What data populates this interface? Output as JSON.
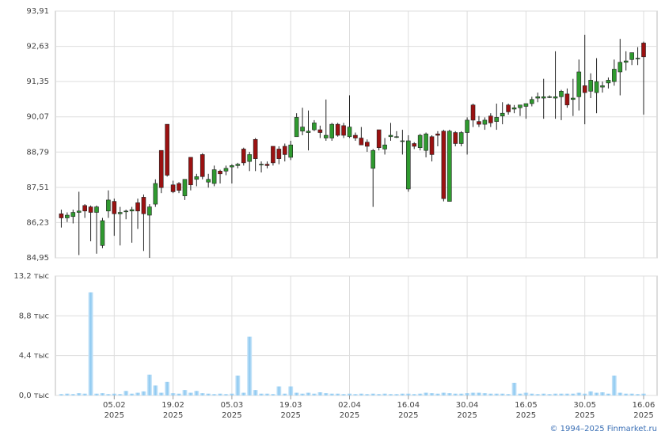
{
  "chart_data": [
    {
      "type": "candlestick",
      "candles": [
        [
          86.55,
          86.7,
          86.05,
          86.4
        ],
        [
          86.4,
          86.6,
          86.25,
          86.5
        ],
        [
          86.45,
          86.7,
          86.2,
          86.6
        ],
        [
          86.6,
          87.35,
          85.05,
          86.65
        ],
        [
          86.85,
          86.9,
          86.4,
          86.65
        ],
        [
          86.8,
          86.85,
          85.55,
          86.6
        ],
        [
          86.6,
          86.85,
          85.1,
          86.8
        ],
        [
          85.4,
          86.4,
          85.3,
          86.3
        ],
        [
          86.65,
          87.4,
          86.4,
          87.05
        ],
        [
          87.0,
          87.1,
          85.75,
          86.55
        ],
        [
          86.55,
          86.8,
          85.4,
          86.6
        ],
        [
          86.65,
          86.7,
          86.35,
          86.65
        ],
        [
          86.65,
          86.8,
          85.5,
          86.7
        ],
        [
          86.95,
          87.1,
          86.0,
          86.65
        ],
        [
          87.15,
          87.25,
          85.2,
          86.55
        ],
        [
          86.5,
          86.9,
          84.95,
          86.8
        ],
        [
          86.9,
          87.8,
          86.8,
          87.65
        ],
        [
          88.85,
          88.85,
          87.3,
          87.5
        ],
        [
          89.8,
          89.8,
          87.9,
          87.95
        ],
        [
          87.6,
          87.75,
          87.3,
          87.35
        ],
        [
          87.65,
          87.7,
          87.3,
          87.4
        ],
        [
          87.2,
          87.8,
          87.05,
          87.8
        ],
        [
          88.6,
          88.6,
          87.4,
          87.6
        ],
        [
          87.8,
          88.0,
          87.55,
          87.9
        ],
        [
          88.7,
          88.75,
          87.8,
          87.9
        ],
        [
          87.7,
          88.0,
          87.5,
          87.8
        ],
        [
          87.65,
          88.3,
          87.55,
          88.15
        ],
        [
          88.1,
          88.15,
          87.65,
          88.0
        ],
        [
          88.1,
          88.3,
          87.95,
          88.2
        ],
        [
          88.25,
          88.35,
          87.65,
          88.3
        ],
        [
          88.3,
          88.4,
          88.2,
          88.35
        ],
        [
          88.9,
          88.95,
          88.3,
          88.4
        ],
        [
          88.45,
          88.8,
          88.1,
          88.7
        ],
        [
          89.25,
          89.3,
          88.1,
          88.55
        ],
        [
          88.35,
          88.45,
          88.05,
          88.35
        ],
        [
          88.35,
          88.45,
          88.2,
          88.3
        ],
        [
          89.0,
          89.0,
          88.3,
          88.4
        ],
        [
          88.9,
          89.0,
          88.35,
          88.55
        ],
        [
          89.0,
          89.1,
          88.45,
          88.7
        ],
        [
          88.6,
          89.2,
          88.5,
          89.05
        ],
        [
          89.35,
          90.2,
          89.35,
          90.05
        ],
        [
          89.55,
          90.4,
          89.4,
          89.7
        ],
        [
          89.5,
          90.3,
          88.85,
          89.55
        ],
        [
          89.6,
          89.95,
          89.55,
          89.85
        ],
        [
          89.6,
          89.75,
          89.3,
          89.5
        ],
        [
          89.3,
          90.7,
          89.2,
          89.4
        ],
        [
          89.3,
          89.85,
          89.2,
          89.8
        ],
        [
          89.8,
          89.85,
          89.35,
          89.4
        ],
        [
          89.75,
          89.85,
          89.3,
          89.4
        ],
        [
          89.35,
          90.85,
          89.3,
          89.7
        ],
        [
          89.4,
          89.5,
          89.2,
          89.3
        ],
        [
          89.3,
          89.7,
          89.05,
          89.05
        ],
        [
          89.15,
          89.25,
          88.8,
          89.0
        ],
        [
          88.2,
          88.9,
          86.8,
          88.85
        ],
        [
          89.6,
          89.6,
          88.85,
          88.95
        ],
        [
          88.9,
          89.3,
          88.7,
          89.05
        ],
        [
          89.35,
          89.85,
          89.2,
          89.4
        ],
        [
          89.35,
          89.55,
          89.3,
          89.35
        ],
        [
          89.2,
          89.6,
          88.7,
          89.2
        ],
        [
          87.45,
          89.4,
          87.35,
          89.2
        ],
        [
          89.1,
          89.15,
          88.9,
          89.0
        ],
        [
          88.95,
          89.45,
          88.85,
          89.4
        ],
        [
          88.85,
          89.5,
          88.6,
          89.45
        ],
        [
          89.35,
          89.4,
          88.45,
          88.7
        ],
        [
          89.45,
          89.55,
          89.0,
          89.4
        ],
        [
          89.55,
          89.6,
          87.0,
          87.1
        ],
        [
          87.0,
          89.6,
          87.0,
          89.55
        ],
        [
          89.5,
          89.55,
          89.0,
          89.1
        ],
        [
          89.1,
          89.55,
          89.0,
          89.5
        ],
        [
          89.5,
          90.05,
          88.7,
          89.95
        ],
        [
          90.5,
          90.55,
          89.7,
          89.95
        ],
        [
          89.9,
          90.1,
          89.7,
          89.8
        ],
        [
          89.8,
          90.05,
          89.6,
          89.95
        ],
        [
          90.1,
          90.2,
          89.7,
          89.85
        ],
        [
          89.9,
          90.55,
          89.6,
          90.05
        ],
        [
          90.1,
          90.6,
          89.8,
          90.2
        ],
        [
          90.5,
          90.55,
          90.15,
          90.25
        ],
        [
          90.35,
          90.5,
          90.2,
          90.4
        ],
        [
          90.4,
          90.5,
          90.1,
          90.5
        ],
        [
          90.45,
          90.55,
          90.0,
          90.55
        ],
        [
          90.55,
          90.8,
          90.45,
          90.7
        ],
        [
          90.75,
          90.95,
          90.6,
          90.8
        ],
        [
          90.75,
          91.45,
          90.0,
          90.8
        ],
        [
          90.8,
          90.85,
          90.75,
          90.8
        ],
        [
          90.75,
          92.45,
          90.0,
          90.8
        ],
        [
          90.8,
          91.05,
          89.95,
          91.0
        ],
        [
          90.9,
          91.1,
          90.4,
          90.5
        ],
        [
          90.7,
          91.45,
          90.1,
          90.75
        ],
        [
          90.8,
          92.15,
          90.3,
          91.7
        ],
        [
          91.2,
          93.05,
          89.8,
          90.95
        ],
        [
          91.0,
          91.65,
          90.75,
          91.4
        ],
        [
          90.95,
          92.2,
          90.2,
          91.35
        ],
        [
          91.15,
          91.35,
          90.95,
          91.2
        ],
        [
          91.3,
          91.5,
          91.1,
          91.4
        ],
        [
          91.35,
          92.15,
          91.2,
          91.8
        ],
        [
          91.7,
          92.9,
          90.85,
          92.05
        ],
        [
          92.05,
          92.45,
          91.75,
          92.1
        ],
        [
          92.15,
          92.4,
          91.95,
          92.4
        ],
        [
          92.2,
          92.6,
          91.95,
          92.2
        ],
        [
          92.75,
          92.8,
          90.15,
          92.25
        ]
      ],
      "up_color": "#2f9a2f",
      "down_color": "#9b1111",
      "ylim": [
        84.95,
        93.91
      ],
      "yticks": [
        {
          "value": 84.95,
          "label": "84,95"
        },
        {
          "value": 86.23,
          "label": "86,23"
        },
        {
          "value": 87.51,
          "label": "87,51"
        },
        {
          "value": 88.79,
          "label": "88,79"
        },
        {
          "value": 90.07,
          "label": "90,07"
        },
        {
          "value": 91.35,
          "label": "91,35"
        },
        {
          "value": 92.63,
          "label": "92,63"
        },
        {
          "value": 93.91,
          "label": "93,91"
        }
      ],
      "grid": true
    },
    {
      "type": "bar",
      "values": [
        0.15,
        0.2,
        0.15,
        0.25,
        0.2,
        11.4,
        0.2,
        0.25,
        0.15,
        0.2,
        0.15,
        0.5,
        0.2,
        0.3,
        0.45,
        2.3,
        1.1,
        0.3,
        1.5,
        0.25,
        0.2,
        0.6,
        0.3,
        0.5,
        0.25,
        0.2,
        0.15,
        0.2,
        0.15,
        0.2,
        2.2,
        0.3,
        6.5,
        0.6,
        0.2,
        0.2,
        0.15,
        1.0,
        0.2,
        1.0,
        0.3,
        0.2,
        0.3,
        0.2,
        0.35,
        0.25,
        0.2,
        0.2,
        0.15,
        0.2,
        0.15,
        0.2,
        0.15,
        0.2,
        0.15,
        0.2,
        0.15,
        0.15,
        0.2,
        0.2,
        0.15,
        0.2,
        0.3,
        0.25,
        0.2,
        0.3,
        0.25,
        0.2,
        0.2,
        0.25,
        0.3,
        0.3,
        0.25,
        0.2,
        0.2,
        0.2,
        0.15,
        1.4,
        0.2,
        0.3,
        0.2,
        0.15,
        0.2,
        0.15,
        0.2,
        0.2,
        0.2,
        0.2,
        0.3,
        0.2,
        0.45,
        0.3,
        0.35,
        0.2,
        2.2,
        0.3,
        0.2,
        0.2,
        0.15,
        0.2
      ],
      "color": "#8cc8f0",
      "ylim": [
        0,
        13.2
      ],
      "yticks": [
        {
          "value": 0,
          "label": "0,0 тыс"
        },
        {
          "value": 4.4,
          "label": "4,4 тыс"
        },
        {
          "value": 8.8,
          "label": "8,8 тыс"
        },
        {
          "value": 13.2,
          "label": "13,2 тыс"
        }
      ],
      "xticks": [
        {
          "value": 9,
          "label": "05.02",
          "year": "2025"
        },
        {
          "value": 19,
          "label": "19.02",
          "year": "2025"
        },
        {
          "value": 29,
          "label": "05.03",
          "year": "2025"
        },
        {
          "value": 39,
          "label": "19.03",
          "year": "2025"
        },
        {
          "value": 49,
          "label": "02.04",
          "year": "2025"
        },
        {
          "value": 59,
          "label": "16.04",
          "year": "2025"
        },
        {
          "value": 69,
          "label": "30.04",
          "year": "2025"
        },
        {
          "value": 79,
          "label": "16.05",
          "year": "2025"
        },
        {
          "value": 89,
          "label": "30.05",
          "year": "2025"
        },
        {
          "value": 99,
          "label": "16.06",
          "year": "2025"
        }
      ],
      "grid": true,
      "source": "© 1994–2025 Finmarket.ru"
    }
  ]
}
